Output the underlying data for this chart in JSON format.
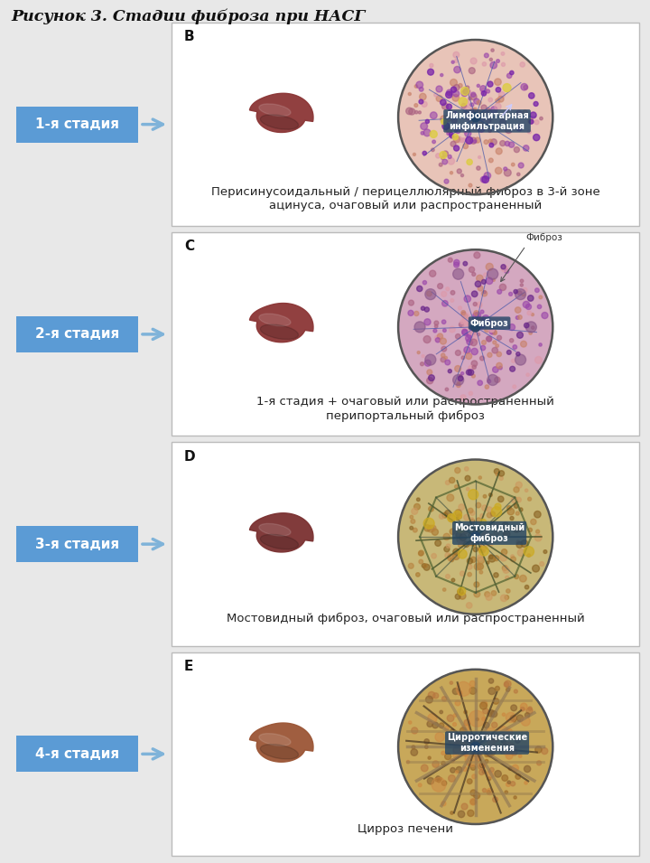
{
  "title": "Рисунок 3. Стадии фиброза при НАСГ",
  "background_color": "#e8e8e8",
  "panel_bg": "#ffffff",
  "panel_border": "#bbbbbb",
  "stage_box_color": "#5b9bd5",
  "stage_text_color": "#ffffff",
  "arrow_color": "#7fb3d9",
  "stages": [
    {
      "label": "1-я стадия",
      "panel_letter": "В",
      "description": "Перисинусоидальный / перицеллюлярный фиброз в 3-й зоне\nацинуса, очаговый или распространенный",
      "annotation": "Лимфоцитарная\nинфильтрация",
      "circle_bg": "#e8c4b8",
      "liver_color": "#8b3a3a"
    },
    {
      "label": "2-я стадия",
      "panel_letter": "С",
      "description": "1-я стадия + очаговый или распространенный\nперипортальный фиброз",
      "annotation": "Фиброз",
      "circle_bg": "#d4a8c0",
      "liver_color": "#8b3a3a"
    },
    {
      "label": "3-я стадия",
      "panel_letter": "D",
      "description": "Мостовидный фиброз, очаговый или распространенный",
      "annotation": "Мостовидный\nфиброз",
      "circle_bg": "#c8b878",
      "liver_color": "#7a3535"
    },
    {
      "label": "4-я стадия",
      "panel_letter": "E",
      "description": "Цирроз печени",
      "annotation": "Цирротические\nизменения",
      "circle_bg": "#c8a85a",
      "liver_color": "#9b5c3a"
    }
  ]
}
